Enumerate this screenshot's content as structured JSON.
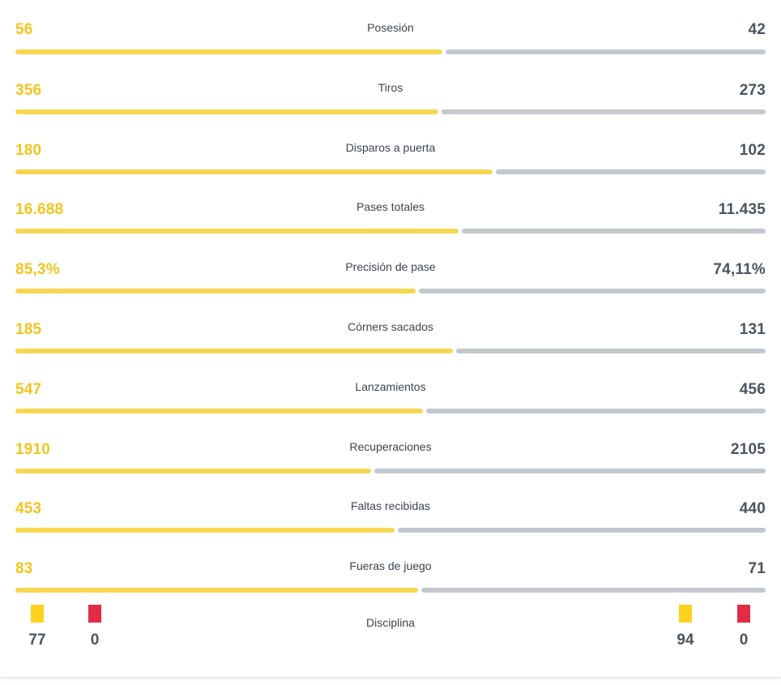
{
  "stats": [
    {
      "label": "Posesión",
      "home": "56",
      "away": "42",
      "home_value": 56,
      "away_value": 42
    },
    {
      "label": "Tiros",
      "home": "356",
      "away": "273",
      "home_value": 356,
      "away_value": 273
    },
    {
      "label": "Disparos a puerta",
      "home": "180",
      "away": "102",
      "home_value": 180,
      "away_value": 102
    },
    {
      "label": "Pases totales",
      "home": "16.688",
      "away": "11.435",
      "home_value": 16688,
      "away_value": 11435
    },
    {
      "label": "Precisión de pase",
      "home": "85,3%",
      "away": "74,11%",
      "home_value": 85.3,
      "away_value": 74.11
    },
    {
      "label": "Córners sacados",
      "home": "185",
      "away": "131",
      "home_value": 185,
      "away_value": 131
    },
    {
      "label": "Lanzamientos",
      "home": "547",
      "away": "456",
      "home_value": 547,
      "away_value": 456
    },
    {
      "label": "Recuperaciones",
      "home": "1910",
      "away": "2105",
      "home_value": 1910,
      "away_value": 2105
    },
    {
      "label": "Faltas recibidas",
      "home": "453",
      "away": "440",
      "home_value": 453,
      "away_value": 440
    },
    {
      "label": "Fueras de juego",
      "home": "83",
      "away": "71",
      "home_value": 83,
      "away_value": 71
    }
  ],
  "discipline": {
    "label": "Disciplina",
    "home_yellow": "77",
    "home_red": "0",
    "away_yellow": "94",
    "away_red": "0"
  },
  "colors": {
    "home": "#f2c51c",
    "home_bar": "#f7d650",
    "away": "#4b5560",
    "away_bar": "#c2c8ce",
    "yellow_card": "#fcd21e",
    "red_card": "#e22b44"
  }
}
